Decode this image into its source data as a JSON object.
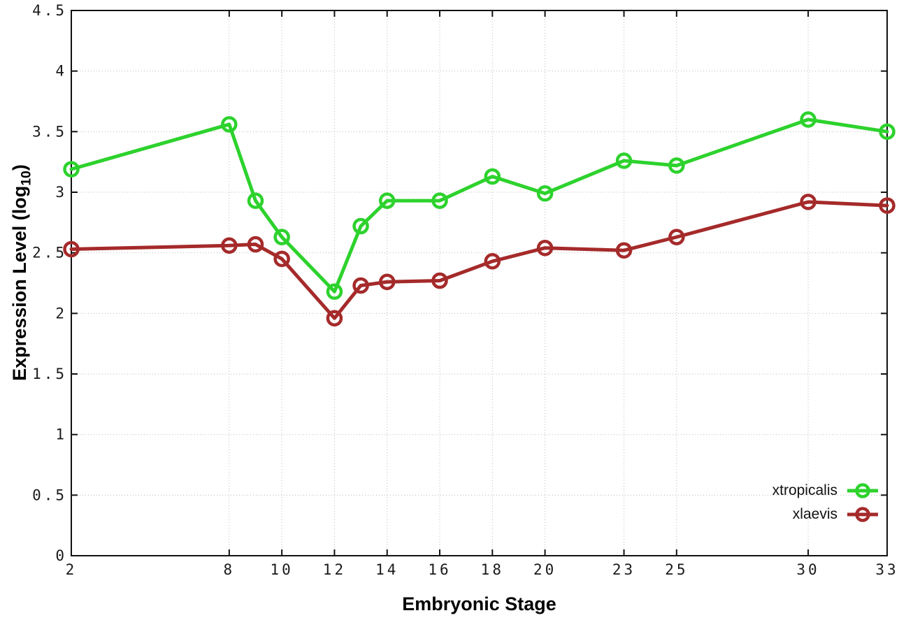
{
  "figure": {
    "background": "#ffffff",
    "frame_color": "#111111",
    "grid_color": "#bbbbbb",
    "tick_label_color": "#1a1a1a"
  },
  "chart_data": {
    "type": "line",
    "title": "",
    "xlabel": "Embryonic Stage",
    "ylabel": "Expression Level (log10)",
    "ylabel_parts": {
      "main": "Expression Level (log",
      "sub": "10",
      "close": ")"
    },
    "xlim": [
      2,
      33
    ],
    "ylim": [
      0,
      4.5
    ],
    "grid": true,
    "legend_position": "inside-bottom-right",
    "x": [
      2,
      8,
      9,
      10,
      12,
      13,
      14,
      16,
      18,
      20,
      23,
      25,
      30,
      33
    ],
    "xticks": [
      2,
      8,
      10,
      12,
      14,
      16,
      18,
      20,
      23,
      25,
      30,
      33
    ],
    "xtick_labels": [
      "2",
      "8",
      "10",
      "12",
      "14",
      "16",
      "18",
      "20",
      "23",
      "25",
      "30",
      "33"
    ],
    "yticks": [
      0,
      0.5,
      1,
      1.5,
      2,
      2.5,
      3,
      3.5,
      4,
      4.5
    ],
    "ytick_labels": [
      "0",
      "0.5",
      "1",
      "1.5",
      "2",
      "2.5",
      "3",
      "3.5",
      "4",
      "4.5"
    ],
    "marker": "open-circle",
    "series": [
      {
        "name": "xtropicalis",
        "color": "#2dd22d",
        "values": [
          3.19,
          3.56,
          2.93,
          2.63,
          2.18,
          2.72,
          2.93,
          2.93,
          3.13,
          2.99,
          3.26,
          3.22,
          3.6,
          3.5
        ]
      },
      {
        "name": "xlaevis",
        "color": "#a52a2a",
        "values": [
          2.53,
          2.56,
          2.57,
          2.45,
          1.96,
          2.23,
          2.26,
          2.27,
          2.43,
          2.54,
          2.52,
          2.63,
          2.92,
          2.89
        ]
      }
    ]
  }
}
